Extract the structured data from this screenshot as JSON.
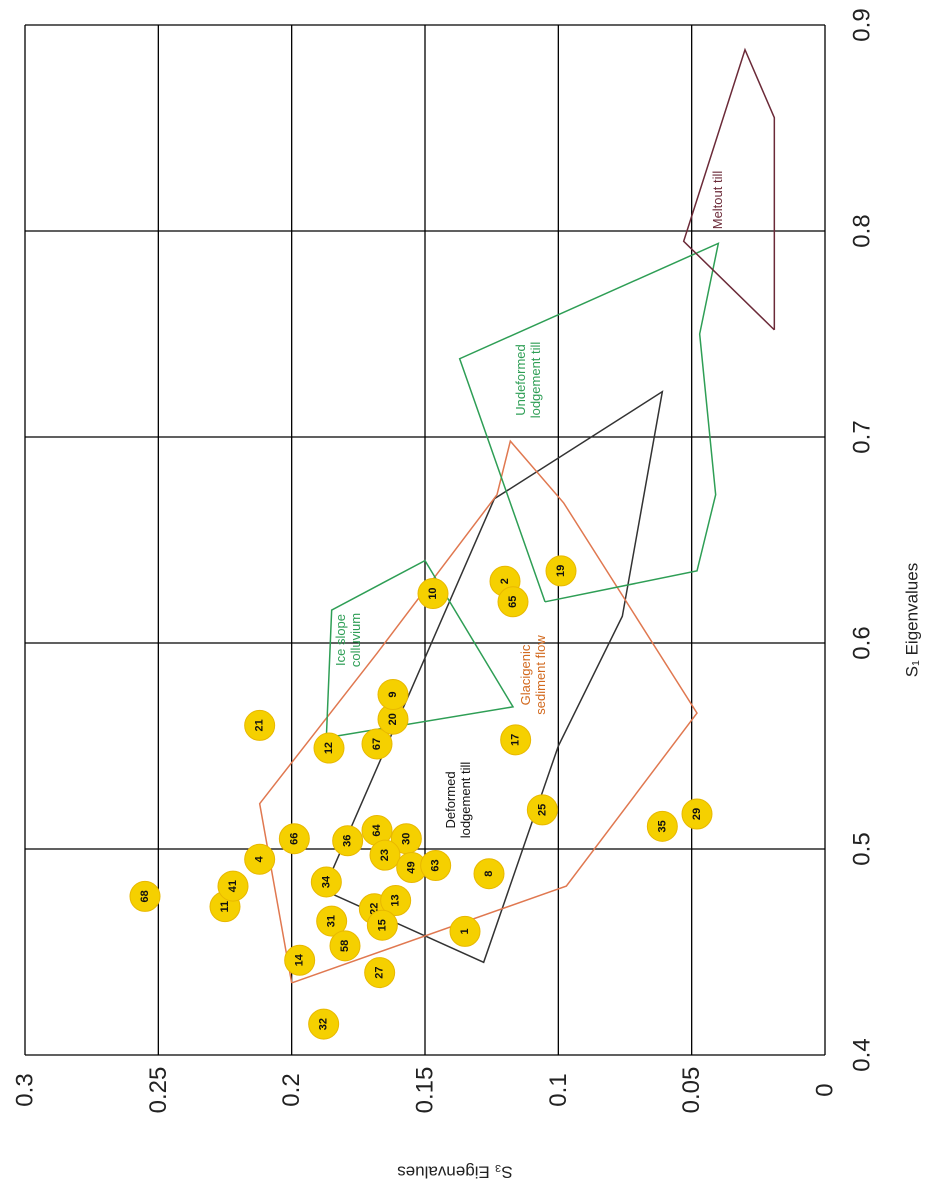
{
  "chart_data": {
    "type": "scatter",
    "title": "",
    "xlabel": "S₁ Eigenvalues",
    "ylabel": "S₃ Eigenvalues",
    "xlim": [
      0.4,
      0.9
    ],
    "ylim": [
      0,
      0.3
    ],
    "xticks": [
      "0.4",
      "0.5",
      "0.6",
      "0.7",
      "0.8",
      "0.9"
    ],
    "yticks": [
      "0",
      "0.05",
      "0.1",
      "0.15",
      "0.2",
      "0.25",
      "0.3"
    ],
    "grid": true,
    "marker_color": "#f5d000",
    "points": [
      {
        "label": "68",
        "x": 0.477,
        "y": 0.255
      },
      {
        "label": "11",
        "x": 0.472,
        "y": 0.225
      },
      {
        "label": "41",
        "x": 0.482,
        "y": 0.222
      },
      {
        "label": "4",
        "x": 0.495,
        "y": 0.212
      },
      {
        "label": "66",
        "x": 0.505,
        "y": 0.199
      },
      {
        "label": "36",
        "x": 0.504,
        "y": 0.179
      },
      {
        "label": "64",
        "x": 0.509,
        "y": 0.168
      },
      {
        "label": "30",
        "x": 0.505,
        "y": 0.157
      },
      {
        "label": "23",
        "x": 0.497,
        "y": 0.165
      },
      {
        "label": "49",
        "x": 0.491,
        "y": 0.155
      },
      {
        "label": "63",
        "x": 0.492,
        "y": 0.146
      },
      {
        "label": "34",
        "x": 0.484,
        "y": 0.187
      },
      {
        "label": "22",
        "x": 0.471,
        "y": 0.169
      },
      {
        "label": "13",
        "x": 0.475,
        "y": 0.161
      },
      {
        "label": "15",
        "x": 0.463,
        "y": 0.166
      },
      {
        "label": "31",
        "x": 0.465,
        "y": 0.185
      },
      {
        "label": "58",
        "x": 0.453,
        "y": 0.18
      },
      {
        "label": "14",
        "x": 0.446,
        "y": 0.197
      },
      {
        "label": "27",
        "x": 0.44,
        "y": 0.167
      },
      {
        "label": "32",
        "x": 0.415,
        "y": 0.188
      },
      {
        "label": "1",
        "x": 0.46,
        "y": 0.135
      },
      {
        "label": "8",
        "x": 0.488,
        "y": 0.126
      },
      {
        "label": "25",
        "x": 0.519,
        "y": 0.106
      },
      {
        "label": "35",
        "x": 0.511,
        "y": 0.061
      },
      {
        "label": "29",
        "x": 0.517,
        "y": 0.048
      },
      {
        "label": "17",
        "x": 0.553,
        "y": 0.116
      },
      {
        "label": "67",
        "x": 0.551,
        "y": 0.168
      },
      {
        "label": "12",
        "x": 0.549,
        "y": 0.186
      },
      {
        "label": "21",
        "x": 0.56,
        "y": 0.212
      },
      {
        "label": "20",
        "x": 0.563,
        "y": 0.162
      },
      {
        "label": "9",
        "x": 0.575,
        "y": 0.162
      },
      {
        "label": "10",
        "x": 0.624,
        "y": 0.147
      },
      {
        "label": "2",
        "x": 0.63,
        "y": 0.12
      },
      {
        "label": "65",
        "x": 0.62,
        "y": 0.117
      },
      {
        "label": "19",
        "x": 0.635,
        "y": 0.099
      }
    ],
    "regions": [
      {
        "name": "Deformed lodgement till",
        "color": "#333333",
        "x": [
          0.48,
          0.445,
          0.55,
          0.613,
          0.722,
          0.67,
          0.48
        ],
        "y": [
          0.188,
          0.128,
          0.1,
          0.076,
          0.061,
          0.124,
          0.188
        ]
      },
      {
        "name": "Glacigenic sediment flow",
        "color": "#e07850",
        "x": [
          0.435,
          0.482,
          0.566,
          0.668,
          0.698,
          0.672,
          0.595,
          0.522,
          0.435
        ],
        "y": [
          0.2,
          0.097,
          0.048,
          0.098,
          0.118,
          0.123,
          0.168,
          0.212,
          0.2
        ]
      },
      {
        "name": "Ice slope colluvium",
        "color": "#2e9e55",
        "x": [
          0.554,
          0.569,
          0.64,
          0.616,
          0.554
        ],
        "y": [
          0.187,
          0.117,
          0.15,
          0.185,
          0.187
        ]
      },
      {
        "name": "Undeformed lodgement till",
        "color": "#2e9e55",
        "x": [
          0.62,
          0.738,
          0.794,
          0.75,
          0.672,
          0.635,
          0.62
        ],
        "y": [
          0.105,
          0.137,
          0.04,
          0.047,
          0.041,
          0.048,
          0.105
        ]
      },
      {
        "name": "Meltout till",
        "color": "#6b2a38",
        "x": [
          0.752,
          0.795,
          0.888,
          0.855,
          0.752
        ],
        "y": [
          0.019,
          0.053,
          0.03,
          0.019,
          0.019
        ]
      }
    ],
    "annotations": [
      {
        "text": "Deformed lodgement till",
        "color": "#111111"
      },
      {
        "text": "Glacigenic sediment flow",
        "color": "#d2691e"
      },
      {
        "text": "Ice slope colluvium",
        "color": "#2e9e55"
      },
      {
        "text": "Undeformed lodgement till",
        "color": "#2e9e55"
      },
      {
        "text": "Meltout till",
        "color": "#6b2a38"
      }
    ]
  }
}
